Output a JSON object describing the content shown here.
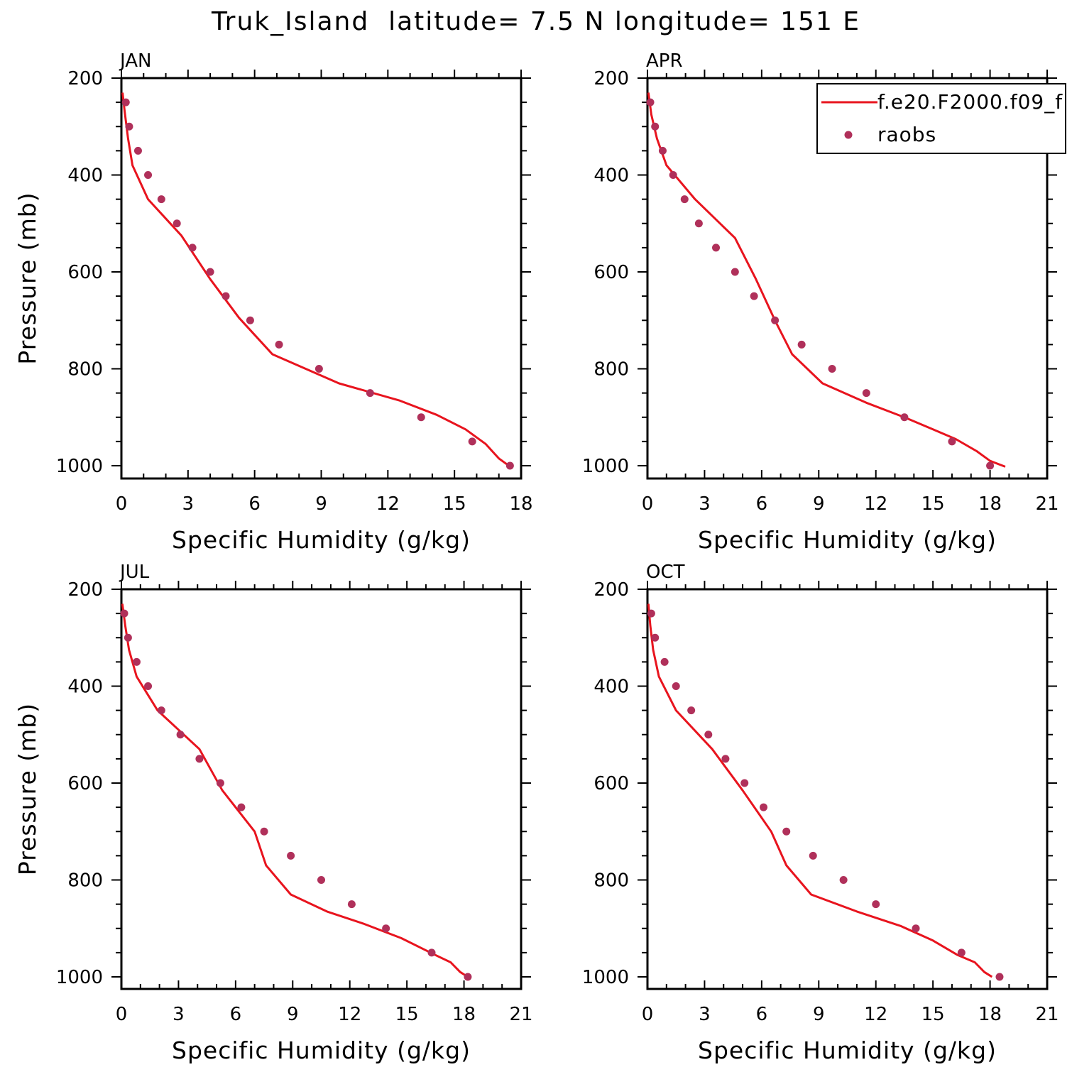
{
  "title": "Truk_Island  latitude= 7.5 N longitude= 151 E",
  "legend": {
    "model_label": "f.e20.F2000.f09_f",
    "obs_label": "raobs",
    "model_color": "#e8141e",
    "obs_color": "#b0305a"
  },
  "chart_data": [
    {
      "type": "line",
      "panel": "JAN",
      "xlabel": "Specific Humidity (g/kg)",
      "ylabel": "Pressure (mb)",
      "xlim": [
        0,
        18
      ],
      "ylim": [
        1000,
        200
      ],
      "y_inverted": true,
      "xticks": [
        0,
        3,
        6,
        9,
        12,
        15,
        18
      ],
      "yticks": [
        200,
        400,
        600,
        800,
        1000
      ],
      "series": [
        {
          "name": "f.e20.F2000.f09_f",
          "style": "line",
          "x": [
            0.05,
            0.15,
            0.3,
            0.5,
            1.2,
            2.7,
            4.0,
            5.3,
            6.8,
            9.8,
            12.5,
            14.2,
            15.5,
            16.4,
            17.0,
            17.6
          ],
          "y": [
            230,
            270,
            325,
            380,
            450,
            525,
            615,
            695,
            770,
            830,
            865,
            895,
            925,
            955,
            985,
            1005
          ]
        },
        {
          "name": "raobs",
          "style": "marker",
          "x": [
            0.2,
            0.35,
            0.75,
            1.2,
            1.8,
            2.5,
            3.2,
            4.0,
            4.7,
            5.8,
            7.1,
            8.9,
            11.2,
            13.5,
            15.8,
            17.5
          ],
          "y": [
            250,
            300,
            350,
            400,
            450,
            500,
            550,
            600,
            650,
            700,
            750,
            800,
            850,
            900,
            950,
            1000
          ]
        }
      ]
    },
    {
      "type": "line",
      "panel": "APR",
      "xlabel": "Specific Humidity (g/kg)",
      "ylabel": "",
      "xlim": [
        0,
        21
      ],
      "ylim": [
        1000,
        200
      ],
      "y_inverted": true,
      "xticks": [
        0,
        3,
        6,
        9,
        12,
        15,
        18,
        21
      ],
      "yticks": [
        200,
        400,
        600,
        800,
        1000
      ],
      "legend_position": "top-right",
      "series": [
        {
          "name": "f.e20.F2000.f09_f",
          "style": "line",
          "x": [
            0.05,
            0.2,
            0.5,
            1.0,
            2.5,
            4.6,
            5.7,
            6.7,
            7.6,
            9.2,
            11.5,
            13.5,
            15.0,
            16.2,
            17.3,
            18.0,
            18.8
          ],
          "y": [
            230,
            275,
            325,
            380,
            450,
            530,
            615,
            700,
            770,
            830,
            870,
            900,
            925,
            945,
            970,
            990,
            1002
          ]
        },
        {
          "name": "raobs",
          "style": "marker",
          "x": [
            0.15,
            0.4,
            0.8,
            1.35,
            1.95,
            2.7,
            3.6,
            4.6,
            5.6,
            6.7,
            8.1,
            9.7,
            11.5,
            13.5,
            16.0,
            18.0
          ],
          "y": [
            250,
            300,
            350,
            400,
            450,
            500,
            550,
            600,
            650,
            700,
            750,
            800,
            850,
            900,
            950,
            1000
          ]
        }
      ]
    },
    {
      "type": "line",
      "panel": "JUL",
      "xlabel": "Specific Humidity (g/kg)",
      "ylabel": "Pressure (mb)",
      "xlim": [
        0,
        21
      ],
      "ylim": [
        1000,
        200
      ],
      "y_inverted": true,
      "xticks": [
        0,
        3,
        6,
        9,
        12,
        15,
        18,
        21
      ],
      "yticks": [
        200,
        400,
        600,
        800,
        1000
      ],
      "series": [
        {
          "name": "f.e20.F2000.f09_f",
          "style": "line",
          "x": [
            0.05,
            0.2,
            0.4,
            0.8,
            1.9,
            4.1,
            5.3,
            7.0,
            7.6,
            8.9,
            10.8,
            12.7,
            14.7,
            16.5,
            17.3,
            17.8,
            18.2
          ],
          "y": [
            230,
            275,
            325,
            380,
            450,
            530,
            615,
            700,
            770,
            830,
            865,
            890,
            920,
            955,
            970,
            990,
            1000
          ]
        },
        {
          "name": "raobs",
          "style": "marker",
          "x": [
            0.15,
            0.35,
            0.8,
            1.4,
            2.1,
            3.1,
            4.1,
            5.2,
            6.3,
            7.5,
            8.9,
            10.5,
            12.1,
            13.9,
            16.3,
            18.2
          ],
          "y": [
            250,
            300,
            350,
            400,
            450,
            500,
            550,
            600,
            650,
            700,
            750,
            800,
            850,
            900,
            950,
            1000
          ]
        }
      ]
    },
    {
      "type": "line",
      "panel": "OCT",
      "xlabel": "Specific Humidity (g/kg)",
      "ylabel": "",
      "xlim": [
        0,
        21
      ],
      "ylim": [
        1000,
        200
      ],
      "y_inverted": true,
      "xticks": [
        0,
        3,
        6,
        9,
        12,
        15,
        18,
        21
      ],
      "yticks": [
        200,
        400,
        600,
        800,
        1000
      ],
      "series": [
        {
          "name": "f.e20.F2000.f09_f",
          "style": "line",
          "x": [
            0.05,
            0.15,
            0.3,
            0.6,
            1.5,
            3.4,
            5.0,
            6.5,
            7.3,
            8.6,
            11.0,
            13.3,
            15.0,
            16.3,
            17.2,
            17.7,
            18.1
          ],
          "y": [
            230,
            275,
            325,
            380,
            450,
            530,
            615,
            700,
            770,
            830,
            865,
            895,
            925,
            955,
            970,
            990,
            1000
          ]
        },
        {
          "name": "raobs",
          "style": "marker",
          "x": [
            0.2,
            0.4,
            0.9,
            1.5,
            2.3,
            3.2,
            4.1,
            5.1,
            6.1,
            7.3,
            8.7,
            10.3,
            12.0,
            14.1,
            16.5,
            18.5
          ],
          "y": [
            250,
            300,
            350,
            400,
            450,
            500,
            550,
            600,
            650,
            700,
            750,
            800,
            850,
            900,
            950,
            1000
          ]
        }
      ]
    }
  ]
}
